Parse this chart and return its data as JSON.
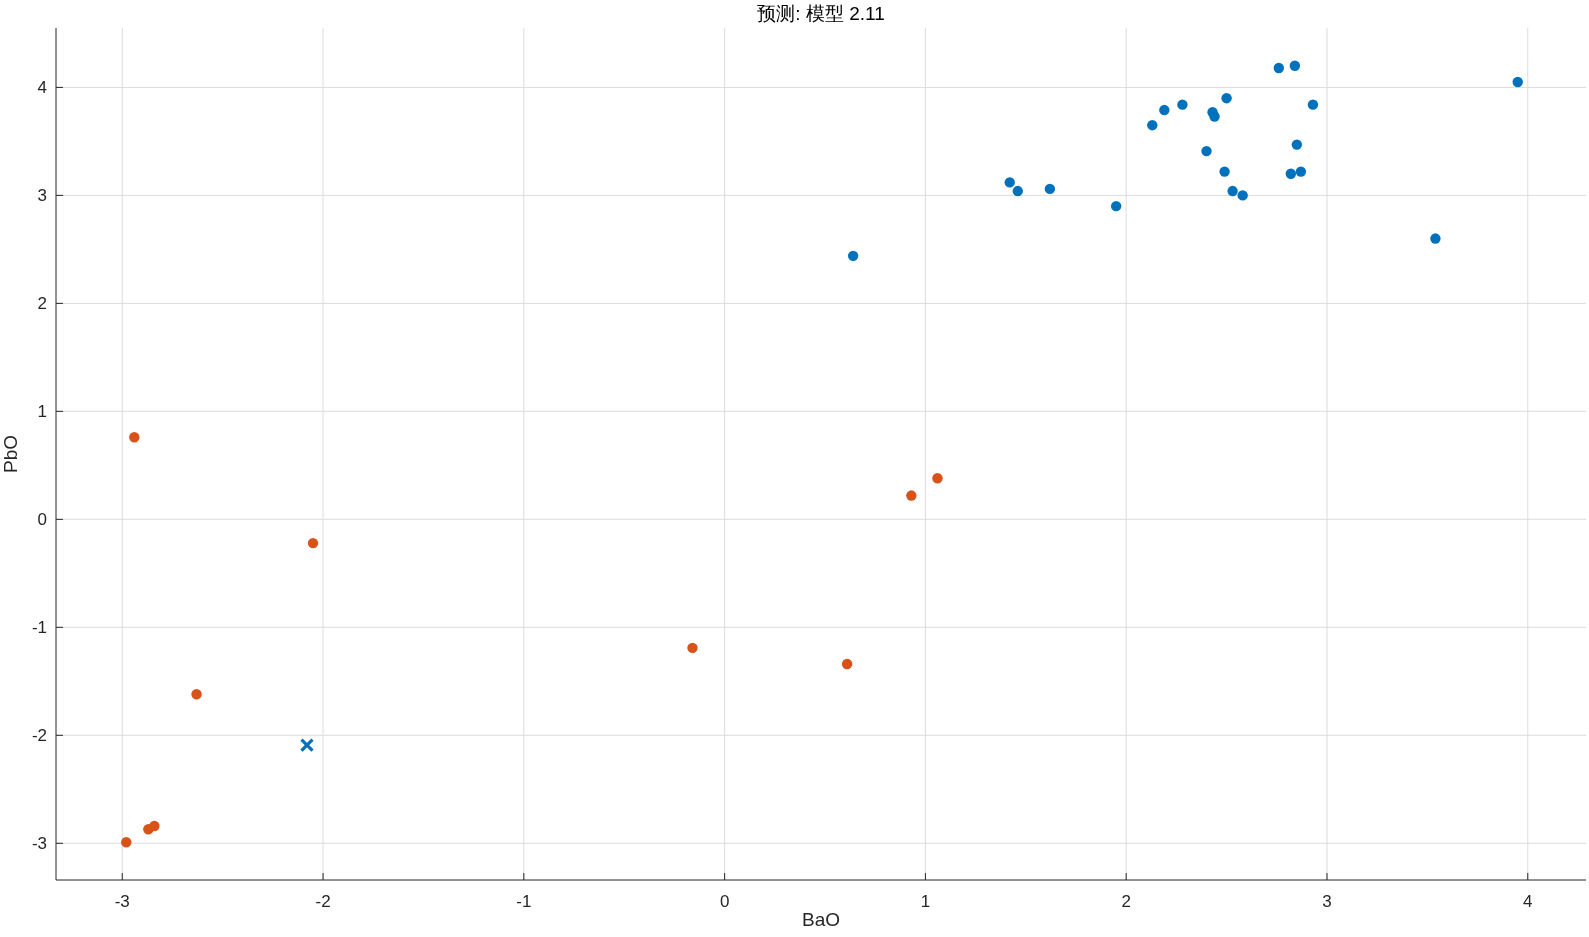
{
  "chart_data": {
    "type": "scatter",
    "title": "预测: 模型 2.11",
    "xlabel": "BaO",
    "ylabel": "PbO",
    "xlim": [
      -3.33,
      4.29
    ],
    "ylim": [
      -3.34,
      4.55
    ],
    "xticks": [
      -3,
      -2,
      -1,
      0,
      1,
      2,
      3,
      4
    ],
    "yticks": [
      -3,
      -2,
      -1,
      0,
      1,
      2,
      3,
      4
    ],
    "grid": true,
    "series": [
      {
        "color": "#0072bd",
        "marker": "circle",
        "x": [
          0.64,
          1.42,
          1.46,
          1.62,
          1.95,
          2.13,
          2.19,
          2.28,
          2.4,
          2.43,
          2.44,
          2.49,
          2.5,
          2.53,
          2.58,
          2.76,
          2.82,
          2.84,
          2.85,
          2.87,
          2.93,
          3.54,
          3.95
        ],
        "values": [
          2.44,
          3.12,
          3.04,
          3.06,
          2.9,
          3.65,
          3.79,
          3.84,
          3.41,
          3.77,
          3.73,
          3.22,
          3.9,
          3.04,
          3.0,
          4.18,
          3.2,
          4.2,
          3.47,
          3.22,
          3.84,
          2.6,
          4.05
        ]
      },
      {
        "color": "#d95319",
        "marker": "circle",
        "x": [
          -2.94,
          -2.05,
          -2.63,
          -2.98,
          -2.87,
          -2.84,
          -0.16,
          0.61,
          0.93,
          1.06
        ],
        "values": [
          0.76,
          -0.22,
          -1.62,
          -2.99,
          -2.87,
          -2.84,
          -1.19,
          -1.34,
          0.22,
          0.38
        ]
      },
      {
        "color": "#0072bd",
        "marker": "cross",
        "x": [
          -2.08
        ],
        "values": [
          -2.09
        ]
      }
    ]
  }
}
